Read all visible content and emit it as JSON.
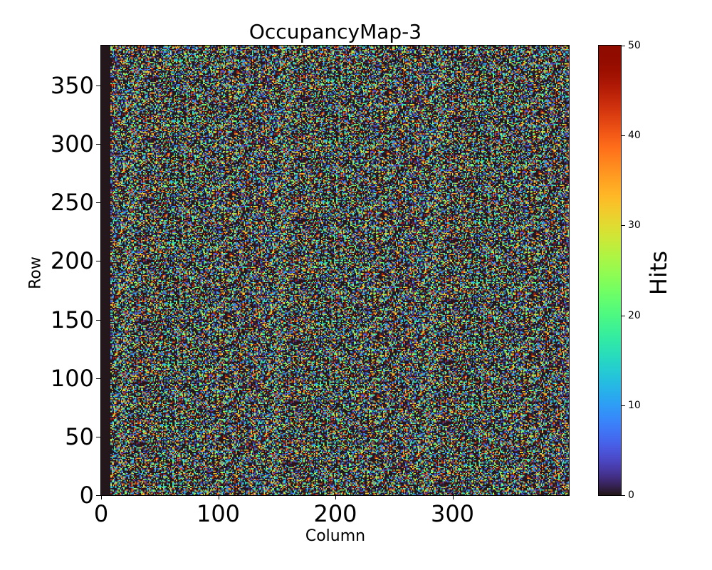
{
  "chart_data": {
    "type": "heatmap",
    "title": "OccupancyMap-3",
    "xlabel": "Column",
    "ylabel": "Row",
    "xlim": [
      0,
      400
    ],
    "ylim": [
      0,
      384
    ],
    "n_columns": 400,
    "n_rows": 384,
    "xticks": [
      "0",
      "100",
      "200",
      "300"
    ],
    "xtick_values": [
      0,
      100,
      200,
      300
    ],
    "yticks": [
      "0",
      "50",
      "100",
      "150",
      "200",
      "250",
      "300",
      "350"
    ],
    "ytick_values": [
      0,
      50,
      100,
      150,
      200,
      250,
      300,
      350
    ],
    "dead_columns": [
      0,
      7
    ],
    "zero_fraction": 0.45,
    "value_range": [
      0,
      50
    ],
    "colormap": "turbo",
    "colorbar": {
      "label": "Hits",
      "range": [
        0,
        50
      ],
      "ticks": [
        "0",
        "10",
        "20",
        "30",
        "40",
        "50"
      ],
      "tick_values": [
        0,
        10,
        20,
        30,
        40,
        50
      ]
    }
  }
}
